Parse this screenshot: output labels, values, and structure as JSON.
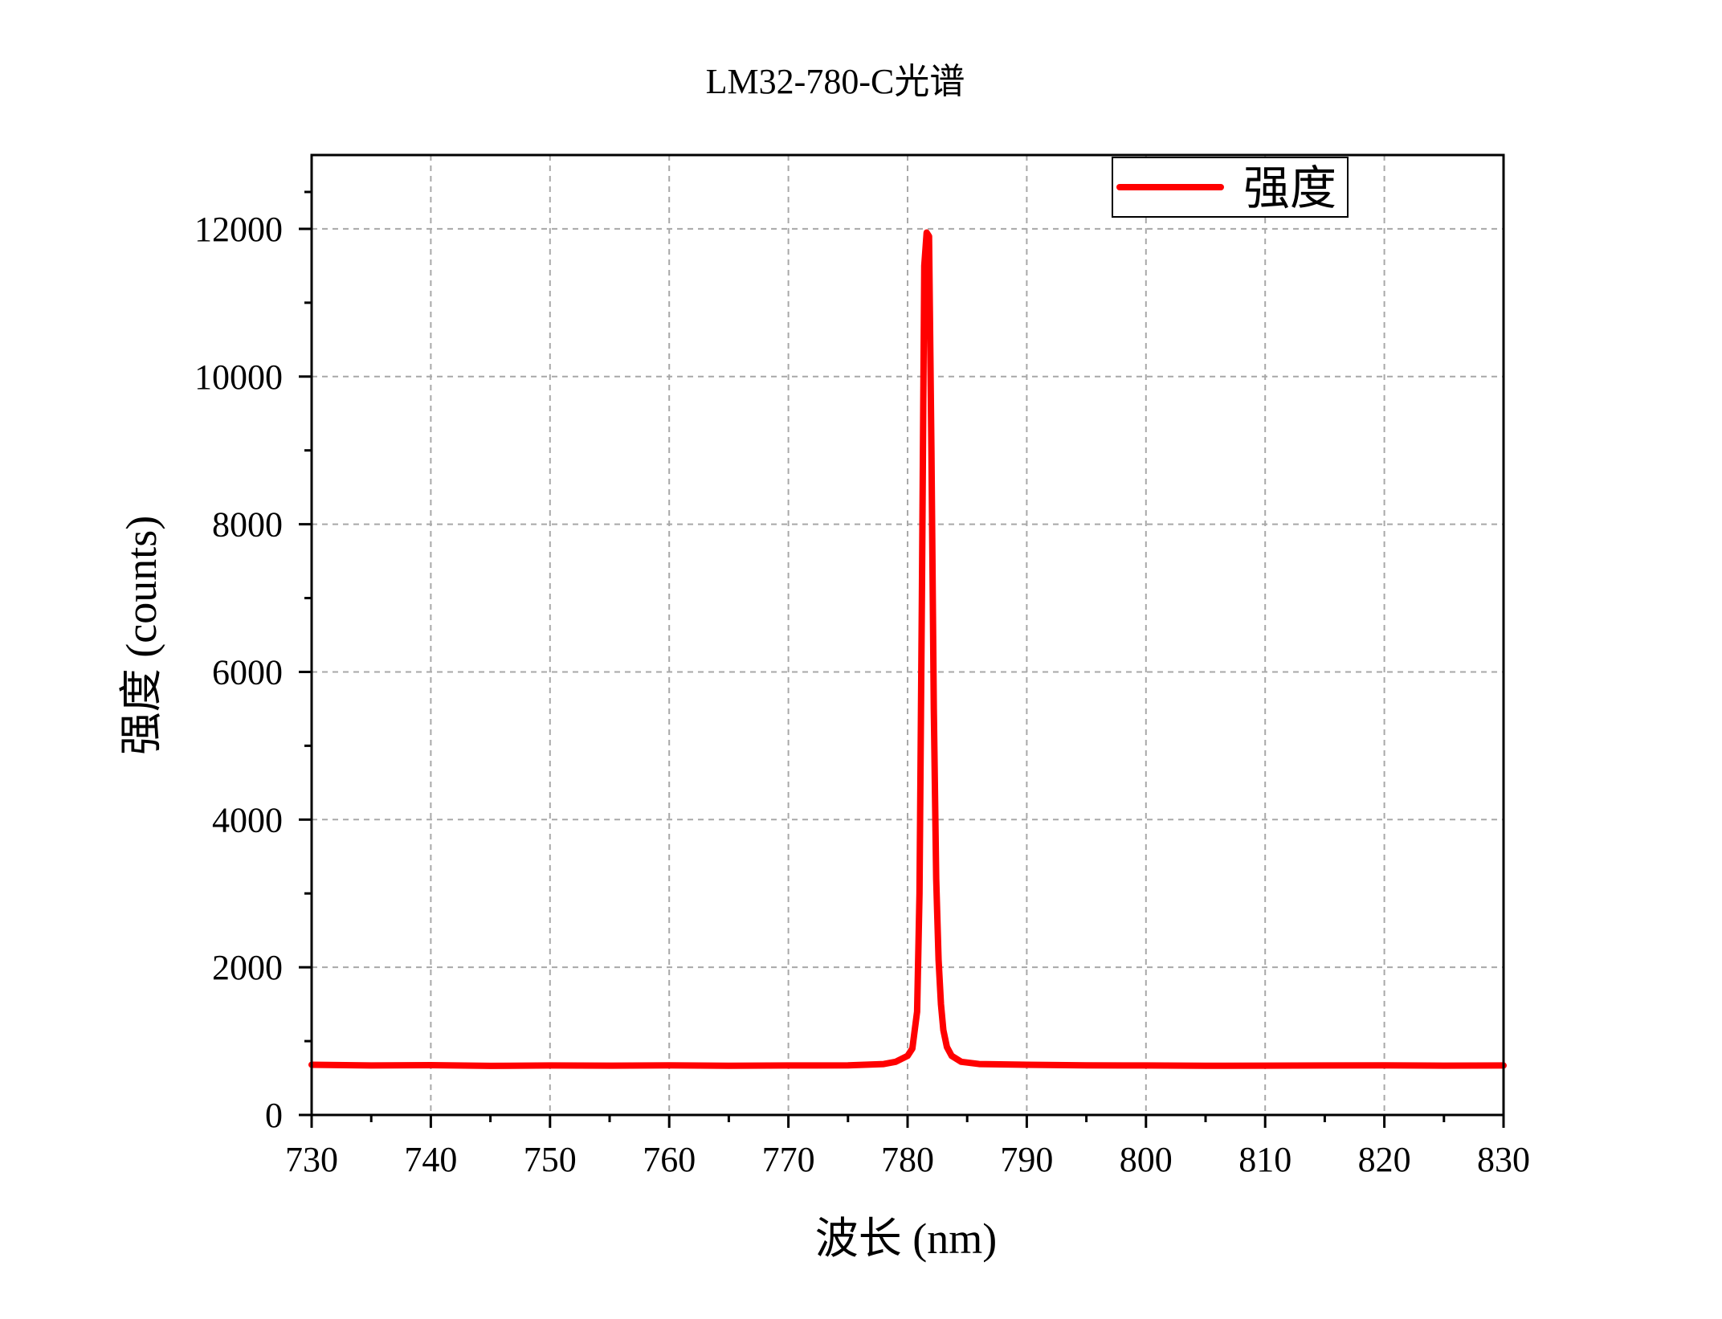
{
  "chart_data": {
    "type": "line",
    "title": "LM32-780-C光谱",
    "xlabel": "波长 (nm)",
    "ylabel": "强度 (counts)",
    "xlim": [
      730,
      830
    ],
    "ylim": [
      0,
      13000
    ],
    "xticks": [
      730,
      740,
      750,
      760,
      770,
      780,
      790,
      800,
      810,
      820,
      830
    ],
    "yticks": [
      0,
      2000,
      4000,
      6000,
      8000,
      10000,
      12000
    ],
    "grid": true,
    "legend": {
      "position": "top-right",
      "entries": [
        "强度"
      ]
    },
    "series": [
      {
        "name": "强度",
        "color": "#ff0000",
        "x": [
          730,
          735,
          740,
          745,
          750,
          755,
          760,
          765,
          770,
          775,
          778,
          779,
          780,
          780.4,
          780.8,
          781.0,
          781.2,
          781.4,
          781.6,
          781.8,
          782.0,
          782.2,
          782.4,
          782.6,
          782.8,
          783.0,
          783.3,
          783.7,
          784.5,
          786,
          790,
          795,
          800,
          805,
          810,
          815,
          820,
          825,
          830
        ],
        "y": [
          680,
          670,
          675,
          665,
          670,
          668,
          672,
          666,
          670,
          672,
          690,
          720,
          800,
          900,
          1400,
          3000,
          7000,
          11500,
          11950,
          11900,
          9000,
          5500,
          3200,
          2100,
          1500,
          1150,
          920,
          800,
          720,
          690,
          680,
          672,
          670,
          666,
          668,
          670,
          672,
          668,
          670
        ]
      }
    ]
  },
  "colors": {
    "series": "#ff0000",
    "axis": "#000000",
    "grid": "#a8a8a8"
  }
}
